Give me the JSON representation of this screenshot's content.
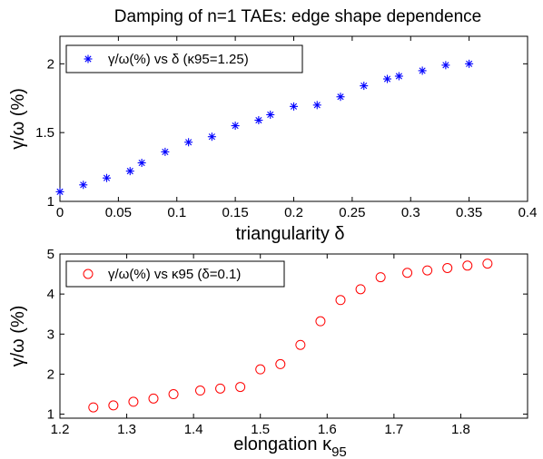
{
  "title": "Damping of n=1 TAEs: edge shape dependence",
  "chart_data": [
    {
      "type": "scatter",
      "xlabel": "triangularity δ",
      "ylabel": "γ/ω (%)",
      "xlim": [
        0,
        0.4
      ],
      "ylim": [
        1,
        2.2
      ],
      "xticks": [
        0,
        0.05,
        0.1,
        0.15,
        0.2,
        0.25,
        0.3,
        0.35,
        0.4
      ],
      "xtick_labels": [
        "0",
        "0.05",
        "0.1",
        "0.15",
        "0.2",
        "0.25",
        "0.3",
        "0.35",
        "0.4"
      ],
      "yticks": [
        1,
        1.5,
        2
      ],
      "ytick_labels": [
        "1",
        "1.5",
        "2"
      ],
      "legend": "top-left",
      "series": [
        {
          "name": "γ/ω(%) vs δ (κ95=1.25)",
          "marker": "asterisk",
          "color": "#0000ff",
          "x": [
            0,
            0.02,
            0.04,
            0.06,
            0.07,
            0.09,
            0.11,
            0.13,
            0.15,
            0.17,
            0.18,
            0.2,
            0.22,
            0.24,
            0.26,
            0.28,
            0.29,
            0.31,
            0.33,
            0.35
          ],
          "y": [
            1.07,
            1.12,
            1.17,
            1.22,
            1.28,
            1.36,
            1.43,
            1.47,
            1.55,
            1.59,
            1.63,
            1.69,
            1.7,
            1.76,
            1.84,
            1.89,
            1.91,
            1.95,
            1.99,
            2.0
          ]
        }
      ]
    },
    {
      "type": "scatter",
      "xlabel": "elongation κ",
      "xlabel_sub": "95",
      "ylabel": "γ/ω (%)",
      "xlim": [
        1.2,
        1.9
      ],
      "ylim": [
        0.9,
        5
      ],
      "xticks": [
        1.2,
        1.3,
        1.4,
        1.5,
        1.6,
        1.7,
        1.8
      ],
      "xtick_labels": [
        "1.2",
        "1.3",
        "1.4",
        "1.5",
        "1.6",
        "1.7",
        "1.8"
      ],
      "yticks": [
        1,
        2,
        3,
        4,
        5
      ],
      "ytick_labels": [
        "1",
        "2",
        "3",
        "4",
        "5"
      ],
      "legend": "top-left",
      "series": [
        {
          "name": "γ/ω(%) vs κ95 (δ=0.1)",
          "marker": "circle",
          "color": "#ff0000",
          "x": [
            1.25,
            1.28,
            1.31,
            1.34,
            1.37,
            1.41,
            1.44,
            1.47,
            1.5,
            1.53,
            1.56,
            1.59,
            1.62,
            1.65,
            1.68,
            1.72,
            1.75,
            1.78,
            1.81,
            1.84
          ],
          "y": [
            1.17,
            1.22,
            1.31,
            1.39,
            1.5,
            1.59,
            1.64,
            1.68,
            2.12,
            2.25,
            2.73,
            3.32,
            3.85,
            4.12,
            4.42,
            4.53,
            4.59,
            4.65,
            4.71,
            4.76
          ]
        }
      ]
    }
  ]
}
